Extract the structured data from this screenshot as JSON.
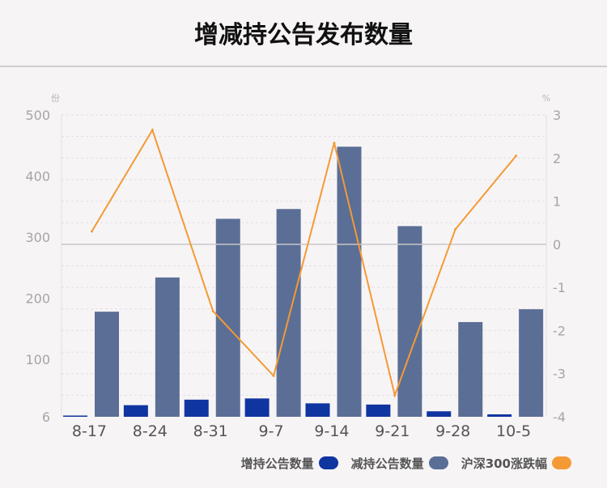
{
  "title": "增减持公告发布数量",
  "left_unit": "份",
  "right_unit": "%",
  "chart_data": {
    "type": "bar",
    "categories": [
      "8-17",
      "8-24",
      "8-31",
      "9-7",
      "9-14",
      "9-21",
      "9-28",
      "10-5"
    ],
    "series": [
      {
        "name": "增持公告数量",
        "type": "bar",
        "axis": "left",
        "color": "#0f35a0",
        "values": [
          8,
          25,
          34,
          36,
          28,
          26,
          15,
          10
        ]
      },
      {
        "name": "减持公告数量",
        "type": "bar",
        "axis": "left",
        "color": "#5b6e96",
        "values": [
          178,
          234,
          330,
          346,
          448,
          318,
          161,
          182
        ]
      },
      {
        "name": "沪深300涨跌幅",
        "type": "line",
        "axis": "right",
        "color": "#f39a34",
        "values": [
          0.3,
          2.65,
          -1.55,
          -3.05,
          2.35,
          -3.5,
          0.35,
          2.05
        ]
      }
    ],
    "y_left": {
      "ticks": [
        "500",
        "400",
        "300",
        "200",
        "100",
        "6"
      ],
      "range": [
        6,
        500
      ]
    },
    "y_right": {
      "ticks": [
        "3",
        "2",
        "1",
        "0",
        "-1",
        "-2",
        "-3",
        "-4"
      ],
      "range": [
        -4,
        3
      ]
    },
    "grid": true,
    "legend": "bottom-right"
  }
}
